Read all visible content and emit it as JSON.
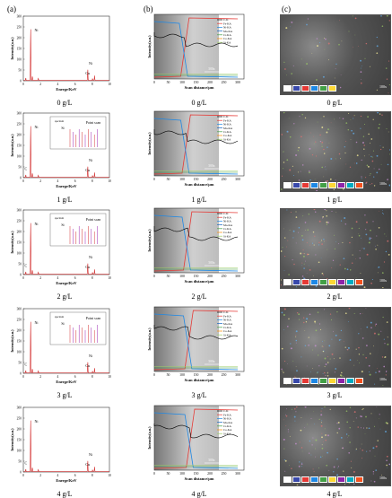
{
  "panels": {
    "a": "(a)",
    "b": "(b)",
    "c": "(c)"
  },
  "samples": [
    "0 g/L",
    "1 g/L",
    "2 g/L",
    "3 g/L",
    "4 g/L"
  ],
  "eds": {
    "x_label": "Energe/KeV",
    "y_label": "Intensity(a.u.)",
    "x_ticks": [
      "0",
      "2",
      "4",
      "6",
      "8",
      "10"
    ],
    "y_ticks": [
      "0",
      "50",
      "100",
      "150",
      "200",
      "250",
      "300"
    ],
    "peaks": {
      "Ni": "Ni",
      "Cu": "Cu",
      "C": "C",
      "Si": "Si"
    },
    "inset_title": "Point scan",
    "inset_peak": "Si",
    "inset_spectrum_label": "spectrum"
  },
  "linescan": {
    "x_label": "Scan distance/μm",
    "y_label": "Intensity(a.u.)",
    "x_ticks": [
      "0",
      "50",
      "100",
      "150",
      "200",
      "250",
      "300"
    ],
    "scale": "500x",
    "legend": [
      "C-K",
      "Fe-KA",
      "Ni-KA",
      "Mo-KA",
      "Cr-KA",
      "Co-KA",
      "Si-KA"
    ],
    "legend_colors": [
      "#000000",
      "#e53935",
      "#1e88e5",
      "#1565c0",
      "#43a047",
      "#fb8c00",
      "#9ccc65"
    ]
  },
  "maps": {
    "scale": "100x",
    "chip_colors": [
      "#ffffff",
      "#3949ab",
      "#e53935",
      "#1e88e5",
      "#43a047",
      "#fdd835",
      "#8e24aa",
      "#00acc1",
      "#f4511e"
    ]
  },
  "chart_data": {
    "type": "line",
    "title": "",
    "xlabel": "Energe/KeV",
    "ylabel": "Intensity(a.u.)",
    "xlim": [
      0,
      10
    ],
    "ylim": [
      0,
      300
    ]
  }
}
